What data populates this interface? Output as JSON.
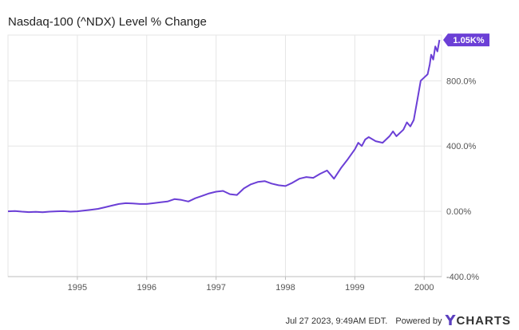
{
  "colors": {
    "line": "#6b3fd6",
    "grid": "#e5e5e5",
    "axis": "#bdbdbd",
    "badge": "#6b3fd6"
  },
  "footer": {
    "timestamp": "Jul 27 2023, 9:49AM EDT.",
    "powered_by": "Powered by",
    "logo_mark": "Y",
    "logo_text": "CHARTS"
  },
  "chart_data": {
    "type": "line",
    "title": "Nasdaq-100 (^NDX) Level % Change",
    "xlabel": "",
    "ylabel": "",
    "xlim": [
      1994.0,
      2000.25
    ],
    "ylim": [
      -400,
      1080
    ],
    "x_ticks": [
      {
        "value": 1995,
        "label": "1995"
      },
      {
        "value": 1996,
        "label": "1996"
      },
      {
        "value": 1997,
        "label": "1997"
      },
      {
        "value": 1998,
        "label": "1998"
      },
      {
        "value": 1999,
        "label": "1999"
      },
      {
        "value": 2000,
        "label": "2000"
      }
    ],
    "y_ticks": [
      {
        "value": 800,
        "label": "800.0%"
      },
      {
        "value": 400,
        "label": "400.0%"
      },
      {
        "value": 0,
        "label": "0.00%"
      },
      {
        "value": -400,
        "label": "-400.0%"
      }
    ],
    "grid": true,
    "end_label": "1.05K%",
    "series": [
      {
        "values": [
          [
            1994.0,
            0
          ],
          [
            1994.1,
            2
          ],
          [
            1994.2,
            -2
          ],
          [
            1994.3,
            -5
          ],
          [
            1994.4,
            -3
          ],
          [
            1994.5,
            -6
          ],
          [
            1994.6,
            -2
          ],
          [
            1994.7,
            0
          ],
          [
            1994.8,
            1
          ],
          [
            1994.9,
            -2
          ],
          [
            1995.0,
            0
          ],
          [
            1995.1,
            5
          ],
          [
            1995.2,
            10
          ],
          [
            1995.3,
            15
          ],
          [
            1995.4,
            25
          ],
          [
            1995.5,
            35
          ],
          [
            1995.6,
            45
          ],
          [
            1995.7,
            50
          ],
          [
            1995.8,
            48
          ],
          [
            1995.9,
            45
          ],
          [
            1996.0,
            45
          ],
          [
            1996.1,
            50
          ],
          [
            1996.2,
            55
          ],
          [
            1996.3,
            60
          ],
          [
            1996.4,
            75
          ],
          [
            1996.5,
            70
          ],
          [
            1996.6,
            60
          ],
          [
            1996.7,
            80
          ],
          [
            1996.8,
            95
          ],
          [
            1996.9,
            110
          ],
          [
            1997.0,
            120
          ],
          [
            1997.1,
            125
          ],
          [
            1997.2,
            105
          ],
          [
            1997.3,
            100
          ],
          [
            1997.4,
            140
          ],
          [
            1997.5,
            165
          ],
          [
            1997.6,
            180
          ],
          [
            1997.7,
            185
          ],
          [
            1997.8,
            170
          ],
          [
            1997.9,
            160
          ],
          [
            1998.0,
            155
          ],
          [
            1998.1,
            175
          ],
          [
            1998.2,
            200
          ],
          [
            1998.3,
            210
          ],
          [
            1998.4,
            205
          ],
          [
            1998.5,
            230
          ],
          [
            1998.6,
            250
          ],
          [
            1998.7,
            200
          ],
          [
            1998.8,
            265
          ],
          [
            1998.9,
            320
          ],
          [
            1999.0,
            380
          ],
          [
            1999.05,
            420
          ],
          [
            1999.1,
            400
          ],
          [
            1999.15,
            440
          ],
          [
            1999.2,
            455
          ],
          [
            1999.3,
            430
          ],
          [
            1999.4,
            420
          ],
          [
            1999.5,
            460
          ],
          [
            1999.55,
            490
          ],
          [
            1999.6,
            460
          ],
          [
            1999.7,
            500
          ],
          [
            1999.75,
            545
          ],
          [
            1999.8,
            520
          ],
          [
            1999.85,
            560
          ],
          [
            1999.9,
            680
          ],
          [
            1999.95,
            800
          ],
          [
            2000.0,
            820
          ],
          [
            2000.05,
            840
          ],
          [
            2000.08,
            900
          ],
          [
            2000.1,
            960
          ],
          [
            2000.13,
            930
          ],
          [
            2000.16,
            1010
          ],
          [
            2000.19,
            980
          ],
          [
            2000.22,
            1050
          ]
        ]
      }
    ]
  }
}
